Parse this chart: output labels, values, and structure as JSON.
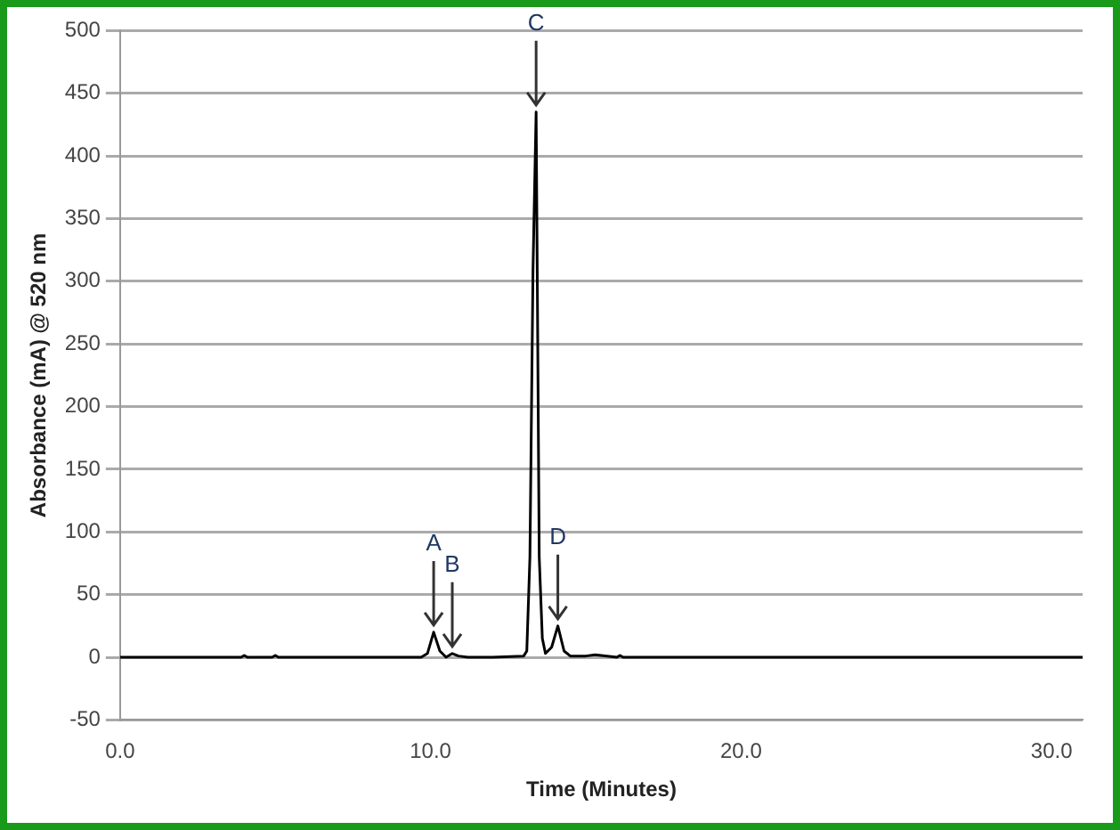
{
  "chart_data": {
    "type": "line",
    "xlabel": "Time (Minutes)",
    "ylabel": "Absorbance (mA) @ 520 nm",
    "x": [
      0,
      3.9,
      4.0,
      4.1,
      4.9,
      5.0,
      5.1,
      9.7,
      9.9,
      10.1,
      10.3,
      10.5,
      10.7,
      10.9,
      11.2,
      12.0,
      13.0,
      13.1,
      13.2,
      13.3,
      13.4,
      13.5,
      13.6,
      13.7,
      13.9,
      14.1,
      14.3,
      14.5,
      15.0,
      15.3,
      16.0,
      16.1,
      16.2,
      31
    ],
    "series": [
      {
        "color": "#000000",
        "values": [
          0,
          0,
          1.5,
          0,
          0,
          1.5,
          0,
          0,
          3,
          20,
          5,
          0,
          3,
          1,
          0,
          0,
          1,
          5,
          80,
          310,
          435,
          80,
          15,
          3,
          8,
          25,
          5,
          1,
          1,
          2,
          0,
          1.5,
          0,
          0
        ]
      }
    ],
    "xlim": [
      0,
      31
    ],
    "xticks": [
      {
        "value": 0,
        "label": "0.0"
      },
      {
        "value": 10,
        "label": "10.0"
      },
      {
        "value": 20,
        "label": "20.0"
      },
      {
        "value": 30,
        "label": "30.0"
      }
    ],
    "ylim": [
      -50,
      500
    ],
    "yticks": [
      -50,
      0,
      50,
      100,
      150,
      200,
      250,
      300,
      350,
      400,
      450,
      500
    ],
    "grid": "y",
    "legend": false,
    "marker": "none",
    "line_style": "solid",
    "annotations": [
      {
        "text": "A",
        "x": 10.1,
        "y": 20
      },
      {
        "text": "B",
        "x": 10.7,
        "y": 3
      },
      {
        "text": "C",
        "x": 13.4,
        "y": 435
      },
      {
        "text": "D",
        "x": 14.1,
        "y": 25
      }
    ]
  }
}
